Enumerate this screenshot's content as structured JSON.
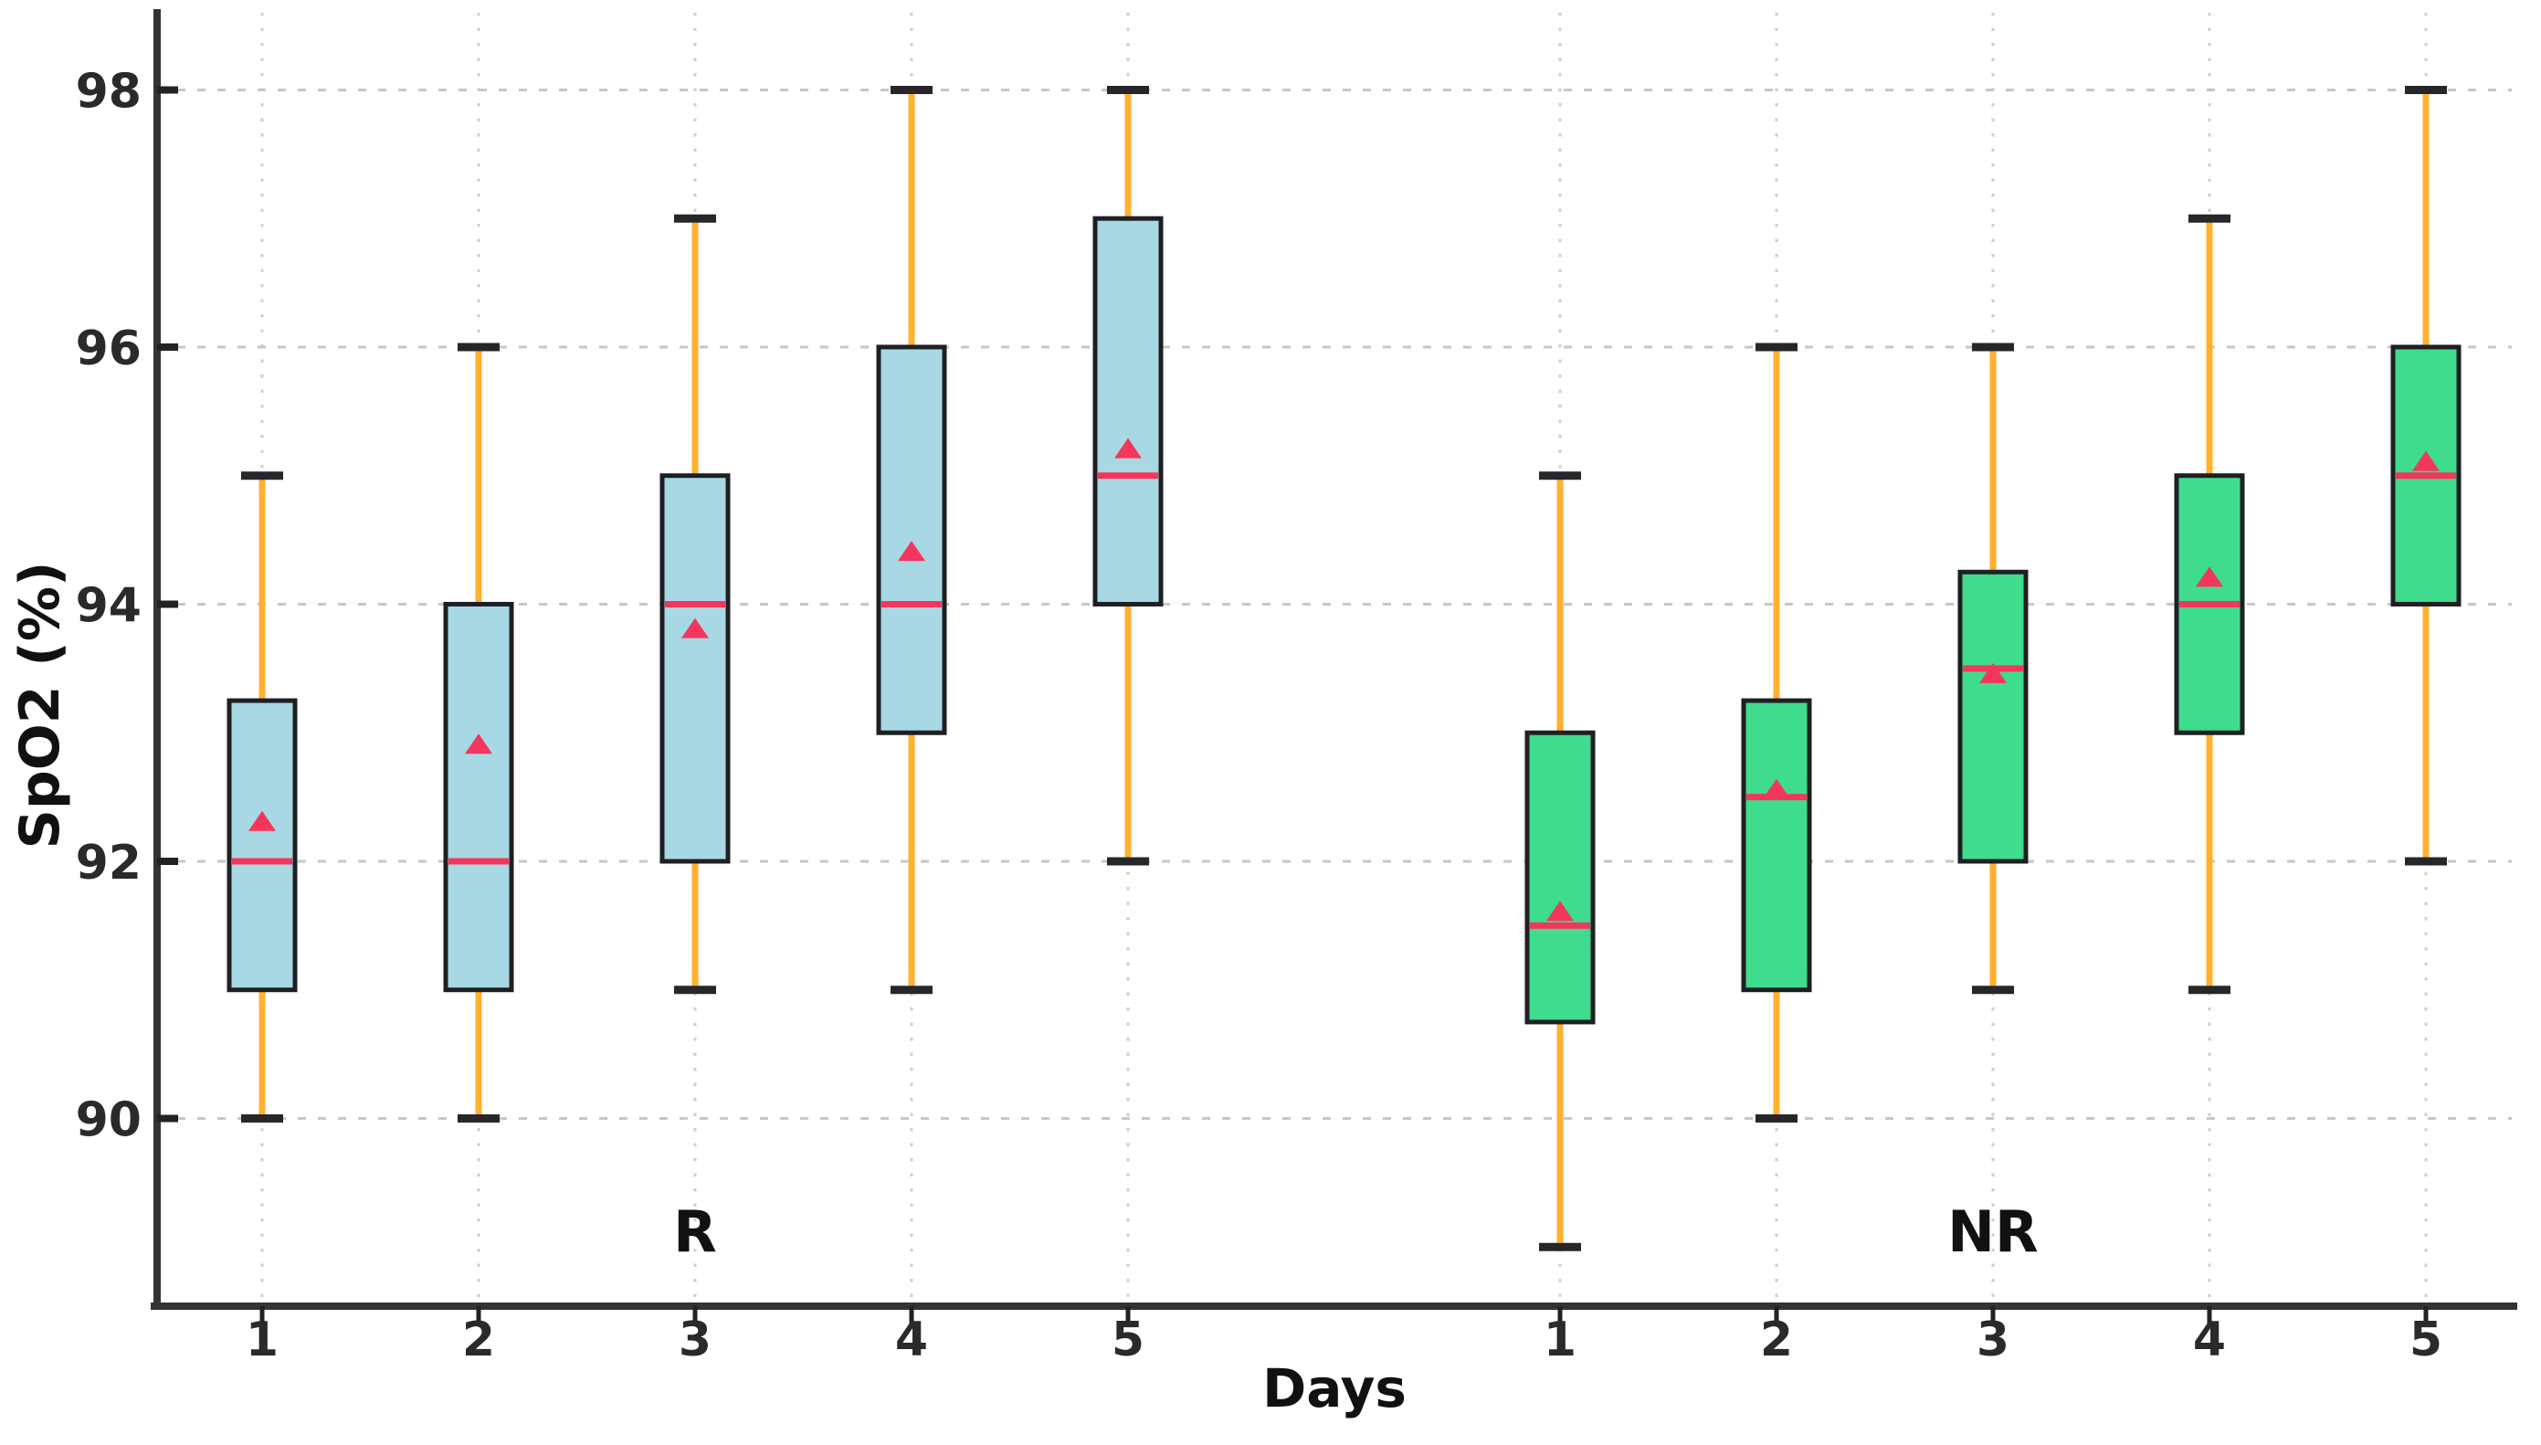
{
  "figure": {
    "title": "",
    "ylabel": "SpO2 (%)",
    "xlabel": "Days",
    "group_label_r": "R",
    "group_label_nr": "NR"
  },
  "chart_data": {
    "type": "boxplot",
    "title": "",
    "xlabel": "Days",
    "ylabel": "SpO2 (%)",
    "yticks": [
      90,
      92,
      94,
      96,
      98
    ],
    "ylim": [
      88.54,
      98.6
    ],
    "grid": true,
    "legend": "none",
    "categories": [
      "1",
      "2",
      "3",
      "4",
      "5"
    ],
    "mean_marker_shape": "triangle-up",
    "groups": [
      {
        "label": "R",
        "box_color": "#A7D8E4",
        "boxes": [
          {
            "day": "1",
            "whisker_low": 90,
            "q1": 91,
            "median": 92,
            "mean": 92.3,
            "q3": 93.25,
            "whisker_high": 95
          },
          {
            "day": "2",
            "whisker_low": 90,
            "q1": 91,
            "median": 92,
            "mean": 92.9,
            "q3": 94,
            "whisker_high": 96
          },
          {
            "day": "3",
            "whisker_low": 91,
            "q1": 92,
            "median": 94,
            "mean": 93.8,
            "q3": 95,
            "whisker_high": 97
          },
          {
            "day": "4",
            "whisker_low": 91,
            "q1": 93,
            "median": 94,
            "mean": 94.4,
            "q3": 96,
            "whisker_high": 98
          },
          {
            "day": "5",
            "whisker_low": 92,
            "q1": 94,
            "median": 95,
            "mean": 95.2,
            "q3": 97,
            "whisker_high": 98
          }
        ]
      },
      {
        "label": "NR",
        "box_color": "#3EDC8C",
        "boxes": [
          {
            "day": "1",
            "whisker_low": 89,
            "q1": 90.75,
            "median": 91.5,
            "mean": 91.6,
            "q3": 93,
            "whisker_high": 95
          },
          {
            "day": "2",
            "whisker_low": 90,
            "q1": 91,
            "median": 92.5,
            "mean": 92.55,
            "q3": 93.25,
            "whisker_high": 96
          },
          {
            "day": "3",
            "whisker_low": 91,
            "q1": 92,
            "median": 93.5,
            "mean": 93.45,
            "q3": 94.25,
            "whisker_high": 96
          },
          {
            "day": "4",
            "whisker_low": 91,
            "q1": 93,
            "median": 94,
            "mean": 94.2,
            "q3": 95,
            "whisker_high": 97
          },
          {
            "day": "5",
            "whisker_low": 92,
            "q1": 94,
            "median": 95,
            "mean": 95.1,
            "q3": 96,
            "whisker_high": 98
          }
        ]
      }
    ],
    "colors": {
      "whisker": "#FFB12E",
      "cap": "#26262b",
      "box_edge": "#1f1f23",
      "median": "#F5365C",
      "mean_marker": "#F5365C",
      "grid_h": "#c7c7c7",
      "grid_v": "#cfcfcf",
      "spine": "#333333",
      "tick": "#222222",
      "tick_label": "#2a2a2a",
      "axis_label": "#111111"
    }
  }
}
